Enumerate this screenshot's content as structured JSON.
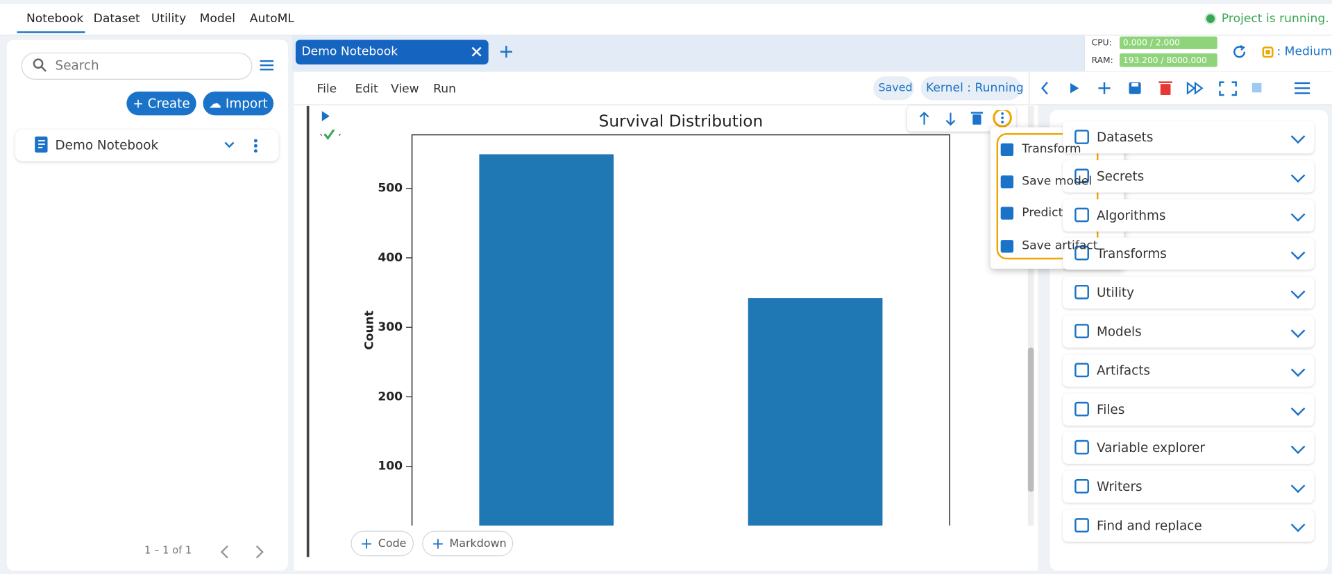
{
  "top_nav": {
    "tabs": [
      "Notebook",
      "Dataset",
      "Utility",
      "Model",
      "AutoML"
    ],
    "status": "Project is running."
  },
  "sidebar": {
    "search_placeholder": "Search",
    "create": "Create",
    "import": "Import",
    "notebooks": [
      "Demo Notebook"
    ],
    "pagination": "1 – 1 of 1"
  },
  "tab": {
    "title": "Demo Notebook"
  },
  "resources": {
    "cpu_label": "CPU:",
    "cpu": "0.000 / 2.000",
    "ram_label": "RAM:",
    "ram": "193.200 / 8000.000",
    "tier": ": Medium"
  },
  "menu": [
    "File",
    "Edit",
    "View",
    "Run"
  ],
  "status": {
    "saved": "Saved",
    "kernel": "Kernel : Running"
  },
  "chart": {
    "type": "bar",
    "title": "Survival Distribution",
    "y_label": "Count",
    "values": [
      549,
      342
    ],
    "color": "#1f77b4",
    "ylim": [
      0,
      577
    ],
    "yticks": [
      100,
      200,
      300,
      400,
      500
    ]
  },
  "cell_buttons": [
    "Code",
    "Markdown"
  ],
  "context_menu": [
    "Transform",
    "Save model",
    "Predict",
    "Save artifact"
  ],
  "right_panel": {
    "sections": [
      "Datasets",
      "Secrets",
      "Algorithms",
      "Transforms",
      "Utility",
      "Models",
      "Artifacts",
      "Files",
      "Variable explorer",
      "Writers",
      "Find and replace"
    ]
  }
}
